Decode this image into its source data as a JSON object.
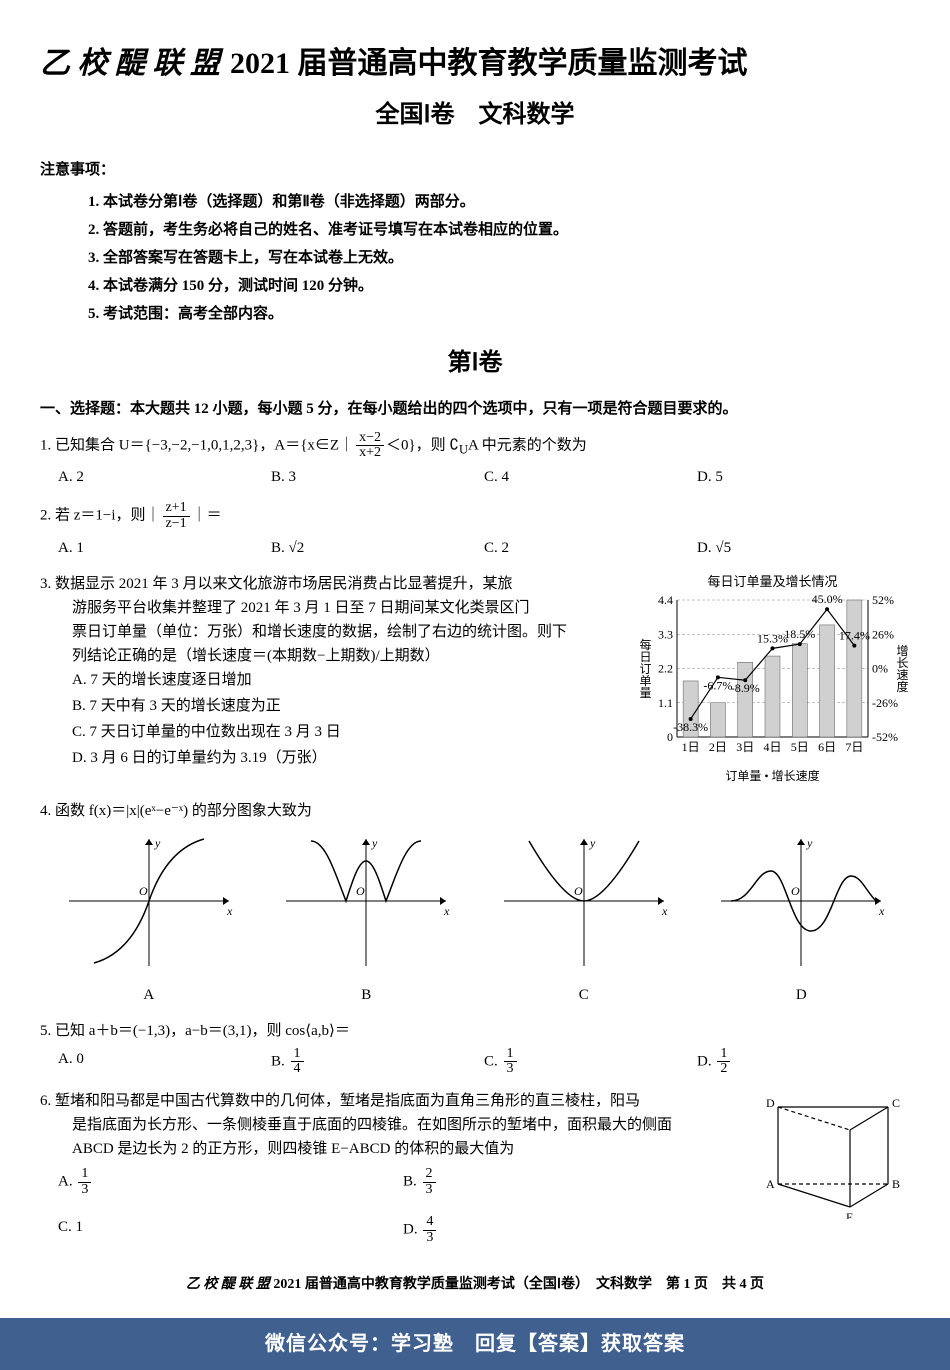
{
  "header": {
    "logo": "乙 校 醍 联 盟",
    "main": "2021 届普通高中教育教学质量监测考试",
    "sub": "全国Ⅰ卷　文科数学"
  },
  "notice": {
    "heading": "注意事项：",
    "items": [
      "1. 本试卷分第Ⅰ卷（选择题）和第Ⅱ卷（非选择题）两部分。",
      "2. 答题前，考生务必将自己的姓名、准考证号填写在本试卷相应的位置。",
      "3. 全部答案写在答题卡上，写在本试卷上无效。",
      "4. 本试卷满分 150 分，测试时间 120 分钟。",
      "5. 考试范围：高考全部内容。"
    ]
  },
  "section1": {
    "title": "第Ⅰ卷"
  },
  "mc": {
    "instructions": "一、选择题：本大题共 12 小题，每小题 5 分，在每小题给出的四个选项中，只有一项是符合题目要求的。"
  },
  "q1": {
    "stem_a": "1. 已知集合 U＝{−3,−2,−1,0,1,2,3}，A＝{x∈Z｜",
    "frac_n": "x−2",
    "frac_d": "x+2",
    "stem_b": "＜0}，则 ∁",
    "stem_sub": "U",
    "stem_c": "A 中元素的个数为",
    "A": "A. 2",
    "B": "B. 3",
    "C": "C. 4",
    "D": "D. 5"
  },
  "q2": {
    "stem_a": "2. 若 z＝1−i，则｜",
    "frac_n": "z+1",
    "frac_d": "z−1",
    "stem_b": "｜＝",
    "A": "A. 1",
    "B": "B. √2",
    "C": "C. 2",
    "D": "D. √5"
  },
  "q3": {
    "l1": "3. 数据显示 2021 年 3 月以来文化旅游市场居民消费占比显著提升，某旅",
    "l2": "游服务平台收集并整理了 2021 年 3 月 1 日至 7 日期间某文化类景区门",
    "l3": "票日订单量（单位：万张）和增长速度的数据，绘制了右边的统计图。则下",
    "l4": "列结论正确的是（增长速度＝(本期数−上期数)/上期数）",
    "optA": "A. 7 天的增长速度逐日增加",
    "optB": "B. 7 天中有 3 天的增长速度为正",
    "optC": "C. 7 天日订单量的中位数出现在 3 月 3 日",
    "optD": "D. 3 月 6 日的订单量约为 3.19（万张）",
    "chart": {
      "title": "每日订单量及增长情况",
      "y_left_ticks": [
        0,
        1.1,
        2.2,
        3.3,
        4.4
      ],
      "y_left_label": "每日订单量",
      "y_right_ticks": [
        "-52%",
        "-26%",
        "0%",
        "26%",
        "52%"
      ],
      "y_right_label": "增长速度",
      "x_labels": [
        "1日",
        "2日",
        "3日",
        "4日",
        "5日",
        "6日",
        "7日"
      ],
      "bars": [
        1.8,
        1.1,
        2.4,
        2.6,
        3.0,
        3.6,
        4.4
      ],
      "line_values": [
        -38.3,
        -6.7,
        -8.9,
        15.3,
        18.5,
        45.0,
        17.4
      ],
      "line_labels": [
        "-38.3%",
        "-6.7%",
        "-8.9%",
        "15.3%",
        "18.5%",
        "45.0%",
        "17.4%"
      ],
      "legend": "订单量 • 增长速度",
      "bar_color": "#d0d0d0",
      "line_color": "#000000",
      "grid_color": "#888888",
      "bg": "#ffffff"
    }
  },
  "q4": {
    "stem": "4. 函数 f(x)＝|x|(eˣ−e⁻ˣ) 的部分图象大致为",
    "labels": {
      "A": "A",
      "B": "B",
      "C": "C",
      "D": "D"
    },
    "axis_color": "#000000",
    "curve_color": "#000000"
  },
  "q5": {
    "stem": "5. 已知 a＋b＝(−1,3)，a−b＝(3,1)，则 cos⟨a,b⟩＝",
    "A": "A. 0",
    "B_pre": "B. ",
    "B_n": "1",
    "B_d": "4",
    "C_pre": "C. ",
    "C_n": "1",
    "C_d": "3",
    "D_pre": "D. ",
    "D_n": "1",
    "D_d": "2"
  },
  "q6": {
    "l1": "6. 堑堵和阳马都是中国古代算数中的几何体，堑堵是指底面为直角三角形的直三棱柱，阳马",
    "l2": "是指底面为长方形、一条侧棱垂直于底面的四棱锥。在如图所示的堑堵中，面积最大的侧面",
    "l3": "ABCD 是边长为 2 的正方形，则四棱锥 E−ABCD 的体积的最大值为",
    "A_pre": "A. ",
    "A_n": "1",
    "A_d": "3",
    "B_pre": "B. ",
    "B_n": "2",
    "B_d": "3",
    "C": "C. 1",
    "D_pre": "D. ",
    "D_n": "4",
    "D_d": "3",
    "figure": {
      "labels": {
        "A": "A",
        "B": "B",
        "C": "C",
        "D": "D",
        "E": "E"
      },
      "line_color": "#000000"
    }
  },
  "footer": {
    "logo": "乙 校 醍 联 盟",
    "text": "2021 届普通高中教育教学质量监测考试（全国Ⅰ卷）　文科数学　第 1 页　共 4 页"
  },
  "watermark": "微信公众号：学习塾　回复【答案】获取答案"
}
